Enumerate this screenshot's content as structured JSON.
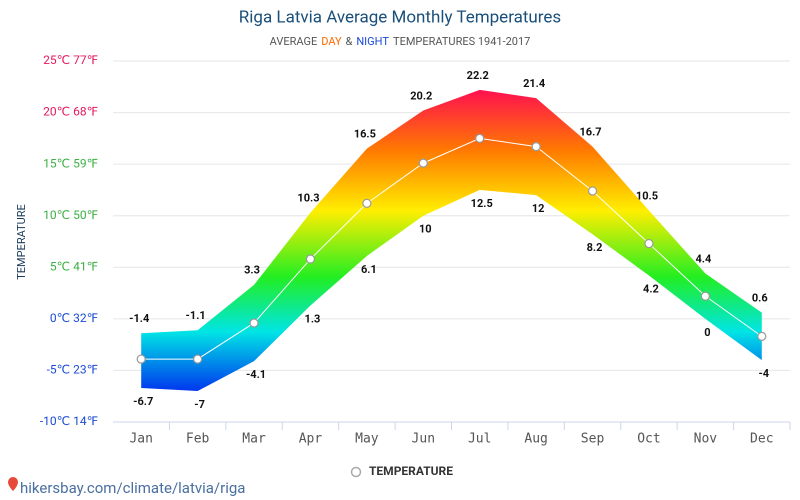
{
  "chart_data": {
    "type": "band",
    "title": "Riga Latvia Average Monthly Temperatures",
    "subtitle_parts": [
      {
        "text": "AVERAGE",
        "color": "#555555"
      },
      {
        "text": "DAY",
        "color": "#ff6a00"
      },
      {
        "text": "&",
        "color": "#555555"
      },
      {
        "text": "NIGHT",
        "color": "#1a4bd6"
      },
      {
        "text": "TEMPERATURES 1941-2017",
        "color": "#555555"
      }
    ],
    "y_label": "TEMPERATURE",
    "categories": [
      "Jan",
      "Feb",
      "Mar",
      "Apr",
      "May",
      "Jun",
      "Jul",
      "Aug",
      "Sep",
      "Oct",
      "Nov",
      "Dec"
    ],
    "day": {
      "values": [
        -1.4,
        -1.1,
        3.3,
        10.3,
        16.5,
        20.2,
        22.2,
        21.4,
        16.7,
        10.5,
        4.4,
        0.6
      ]
    },
    "night": {
      "values": [
        -6.7,
        -7,
        -4.1,
        1.3,
        6.1,
        10,
        12.5,
        12,
        8.2,
        4.2,
        0,
        -4
      ]
    },
    "series": [
      {
        "name": "TEMPERATURE",
        "color": "#ffffff",
        "values": [
          -3.9,
          -3.9,
          -0.4,
          5.8,
          11.2,
          15.1,
          17.5,
          16.7,
          12.4,
          7.3,
          2.2,
          -1.7
        ]
      }
    ],
    "ylim": [
      -10,
      25
    ],
    "yticks": [
      {
        "value": -10,
        "label": "-10℃ 14℉"
      },
      {
        "value": -5,
        "label": "-5℃ 23℉"
      },
      {
        "value": 0,
        "label": "0℃ 32℉"
      },
      {
        "value": 5,
        "label": "5℃ 41℉"
      },
      {
        "value": 10,
        "label": "10℃ 50℉"
      },
      {
        "value": 15,
        "label": "15℃ 59℉"
      },
      {
        "value": 20,
        "label": "20℃ 68℉"
      },
      {
        "value": 25,
        "label": "25℃ 77℉"
      }
    ],
    "ytick_colors": [
      "#1a4bd6",
      "#1a4bd6",
      "#1a4bd6",
      "#3cb043",
      "#3cb043",
      "#3cb043",
      "#e6195c",
      "#e6195c"
    ],
    "grid": true,
    "footer": "hikersbay.com/climate/latvia/riga"
  }
}
